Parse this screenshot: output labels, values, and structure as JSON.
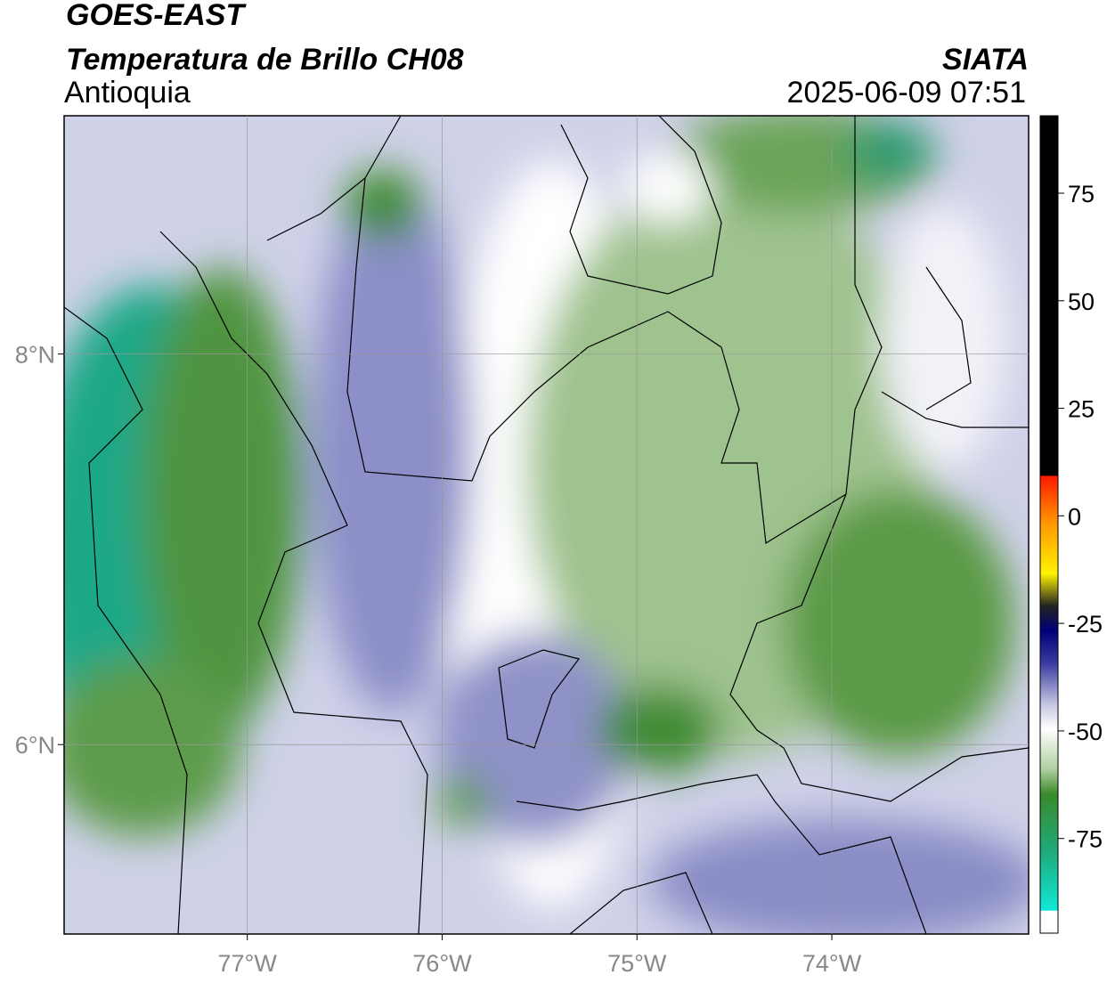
{
  "header": {
    "title": "GOES-EAST",
    "subtitle": "Temperatura de Brillo CH08",
    "region": "Antioquia",
    "source": "SIATA",
    "timestamp": "2025-06-09 07:51"
  },
  "map": {
    "lonlim": [
      -77.94,
      -72.99
    ],
    "latlim": [
      5.03,
      9.22
    ],
    "lon_ticks": [
      {
        "value": -77,
        "label": "77°W"
      },
      {
        "value": -76,
        "label": "76°W"
      },
      {
        "value": -75,
        "label": "75°W"
      },
      {
        "value": -74,
        "label": "74°W"
      }
    ],
    "lat_ticks": [
      {
        "value": 8,
        "label": "8°N"
      },
      {
        "value": 6,
        "label": "6°N"
      }
    ]
  },
  "colorbar": {
    "lim": [
      -97,
      93
    ],
    "ticks": [
      75,
      50,
      25,
      0,
      -25,
      -50,
      -75
    ]
  }
}
